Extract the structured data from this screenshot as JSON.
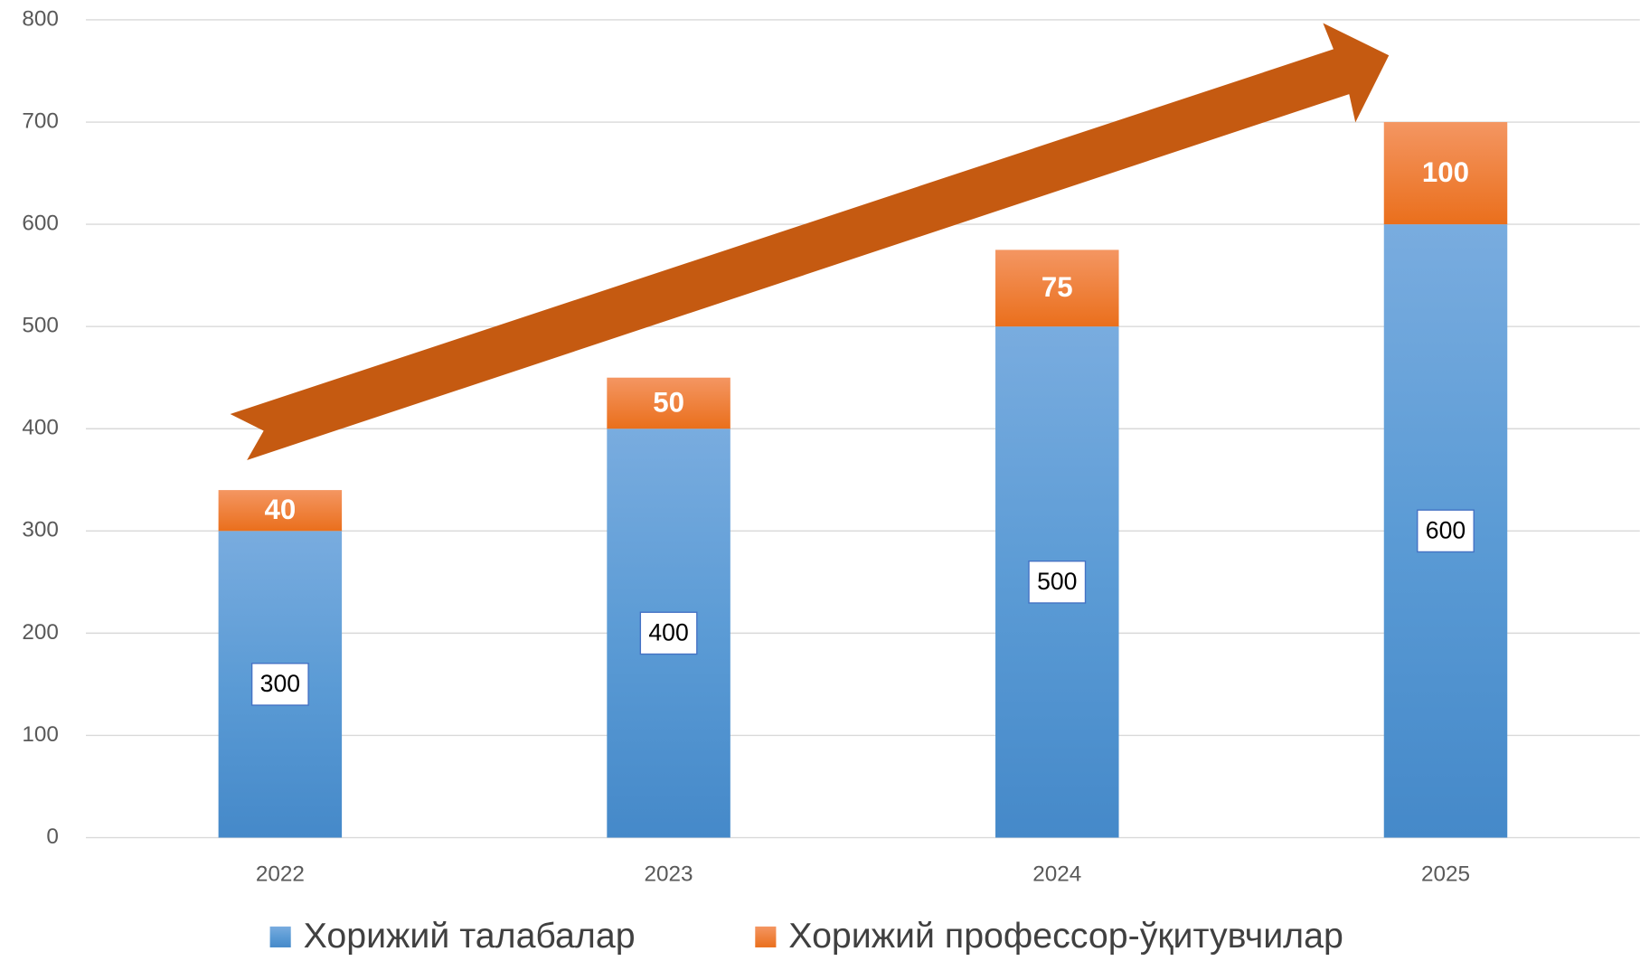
{
  "chart_data": {
    "type": "stacked-bar",
    "categories": [
      "2022",
      "2023",
      "2024",
      "2025"
    ],
    "series": [
      {
        "name": "Хорижий талабалар",
        "color": "#5b9bd5",
        "values": [
          300,
          400,
          500,
          600
        ]
      },
      {
        "name": "Хорижий профессор-ўқитувчилар",
        "color": "#ed7d31",
        "values": [
          40,
          50,
          75,
          100
        ]
      }
    ],
    "ylim": [
      0,
      800
    ],
    "yticks": [
      0,
      100,
      200,
      300,
      400,
      500,
      600,
      700,
      800
    ],
    "grid": true,
    "legend": "bottom"
  }
}
